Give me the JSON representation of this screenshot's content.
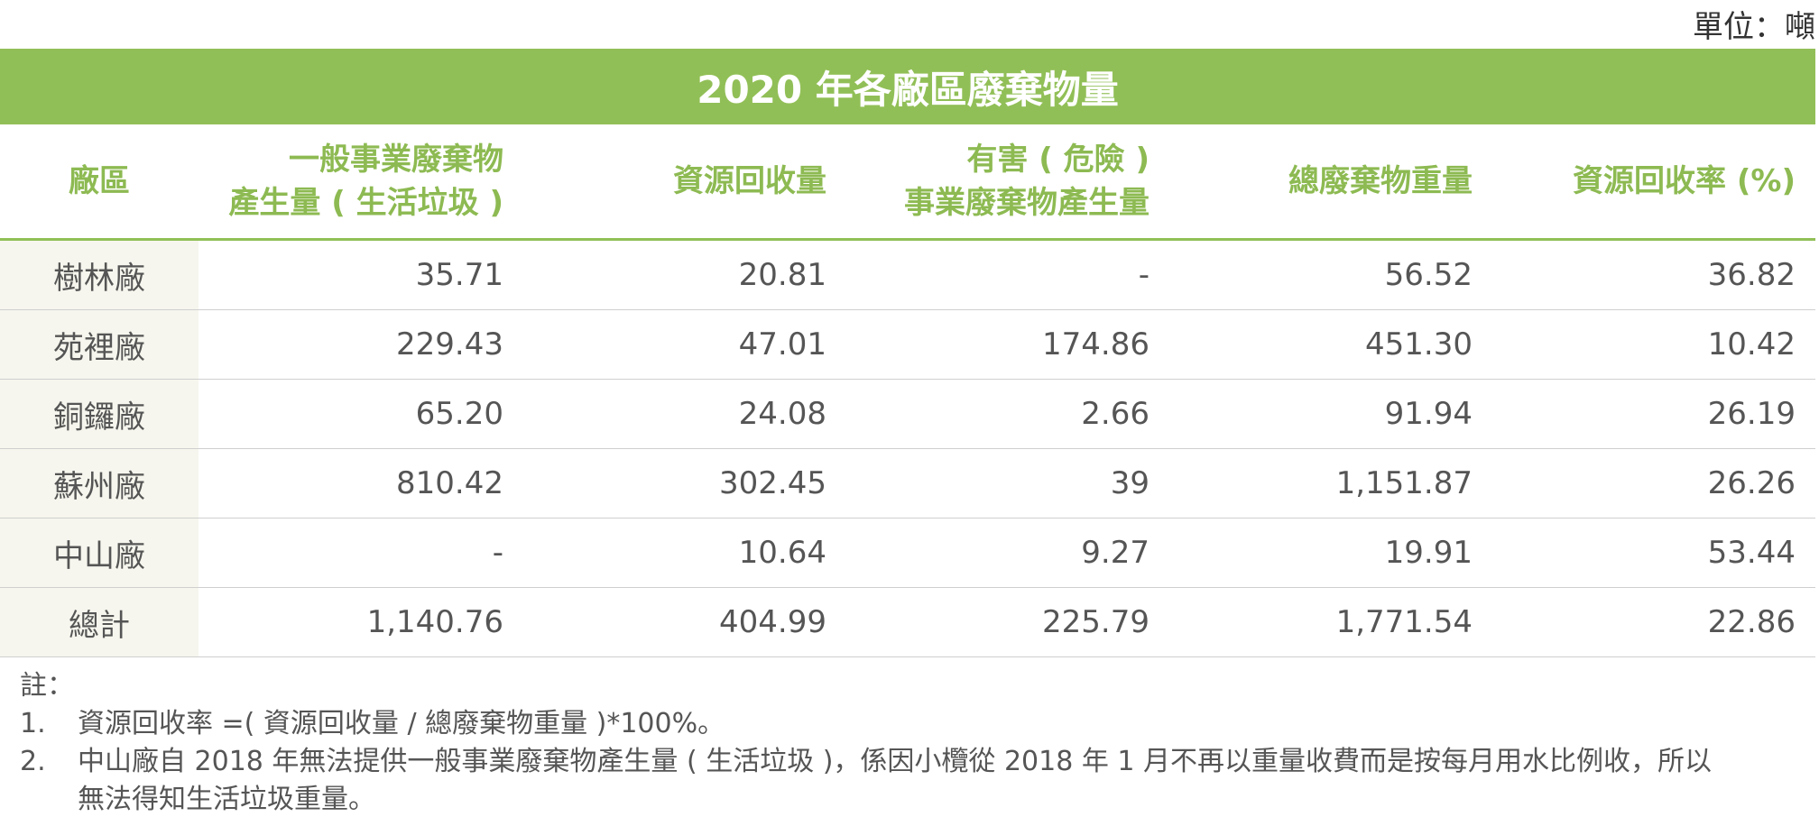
{
  "unit_label": "單位：噸",
  "table": {
    "title": "2020 年各廠區廢棄物量",
    "headers": {
      "plant": "廠區",
      "general_line1": "一般事業廢棄物",
      "general_line2": "產生量 ( 生活垃圾 )",
      "recycled": "資源回收量",
      "hazardous_line1": "有害 ( 危險 )",
      "hazardous_line2": "事業廢棄物產生量",
      "total_weight": "總廢棄物重量",
      "recycle_rate": "資源回收率 (%)"
    },
    "rows": [
      {
        "plant": "樹林廠",
        "general": "35.71",
        "recycled": "20.81",
        "hazardous": "-",
        "total": "56.52",
        "rate": "36.82"
      },
      {
        "plant": "苑裡廠",
        "general": "229.43",
        "recycled": "47.01",
        "hazardous": "174.86",
        "total": "451.30",
        "rate": "10.42"
      },
      {
        "plant": "銅鑼廠",
        "general": "65.20",
        "recycled": "24.08",
        "hazardous": "2.66",
        "total": "91.94",
        "rate": "26.19"
      },
      {
        "plant": "蘇州廠",
        "general": "810.42",
        "recycled": "302.45",
        "hazardous": "39",
        "total": "1,151.87",
        "rate": "26.26"
      },
      {
        "plant": "中山廠",
        "general": "-",
        "recycled": "10.64",
        "hazardous": "9.27",
        "total": "19.91",
        "rate": "53.44"
      },
      {
        "plant": "總計",
        "general": "1,140.76",
        "recycled": "404.99",
        "hazardous": "225.79",
        "total": "1,771.54",
        "rate": "22.86"
      }
    ]
  },
  "notes": {
    "heading": "註：",
    "items": [
      {
        "num": "1.",
        "lines": [
          "資源回收率 =( 資源回收量 / 總廢棄物重量 )*100%。"
        ]
      },
      {
        "num": "2.",
        "lines": [
          "中山廠自 2018 年無法提供一般事業廢棄物產生量 ( 生活垃圾 )，係因小欖從 2018 年 1 月不再以重量收費而是按每月用水比例收，所以",
          "無法得知生活垃圾重量。"
        ]
      }
    ]
  },
  "colors": {
    "accent_green": "#91bf57",
    "header_text_green": "#8dba52",
    "first_col_bg": "#f6f6ee"
  }
}
